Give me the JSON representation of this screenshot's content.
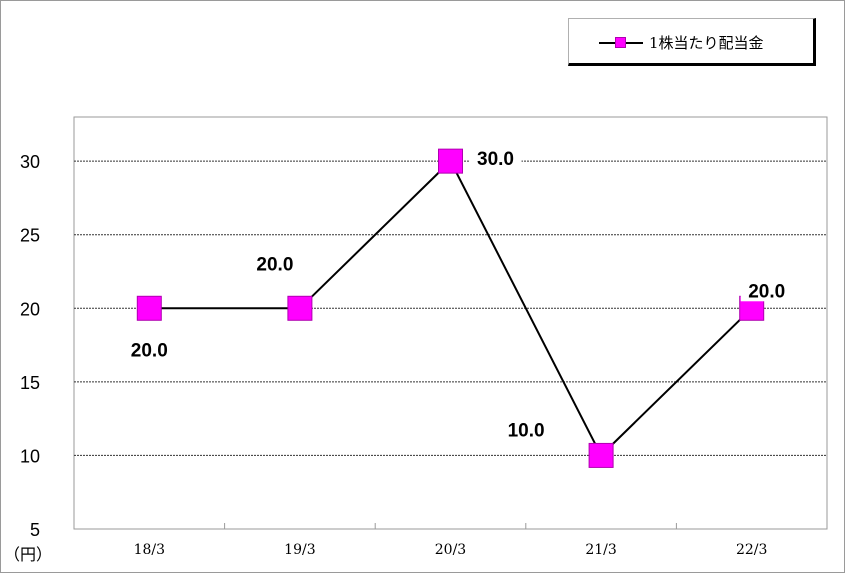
{
  "chart_data": {
    "type": "line",
    "categories": [
      "18/3",
      "19/3",
      "20/3",
      "21/3",
      "22/3"
    ],
    "series": [
      {
        "name": "1株当たり配当金",
        "values": [
          20.0,
          20.0,
          30.0,
          10.0,
          20.0
        ],
        "color": "#ff00ff",
        "line_color": "#000000"
      }
    ],
    "data_labels": [
      "20.0",
      "20.0",
      "30.0",
      "10.0",
      "20.0"
    ],
    "y_ticks": [
      "5",
      "10",
      "15",
      "20",
      "25",
      "30"
    ],
    "ylim": [
      5,
      33
    ],
    "y_unit": "（円）",
    "grid": true,
    "legend_position": "top-right"
  }
}
